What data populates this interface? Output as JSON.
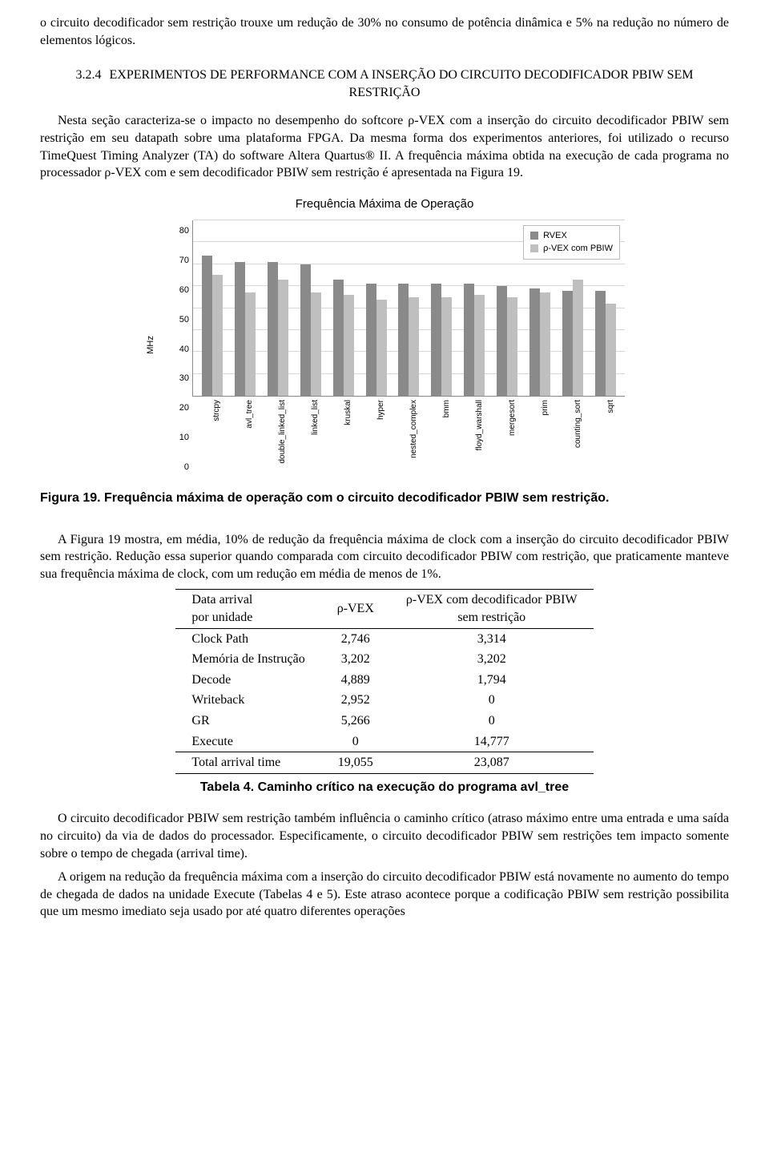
{
  "intro_para": "o circuito decodificador sem restrição trouxe um redução de 30% no consumo de potência dinâmica e 5% na redução no número de elementos lógicos.",
  "section": {
    "number": "3.2.4",
    "title": "EXPERIMENTOS DE PERFORMANCE COM A INSERÇÃO DO CIRCUITO DECODIFICADOR PBIW SEM RESTRIÇÃO"
  },
  "para_after_heading": "Nesta seção caracteriza-se o impacto no desempenho do softcore ρ-VEX com a inserção do circuito decodificador PBIW sem restrição em seu datapath sobre uma plataforma FPGA. Da mesma forma dos experimentos anteriores, foi utilizado o recurso TimeQuest Timing Analyzer (TA) do software Altera Quartus® II. A frequência máxima obtida na execução de cada programa no processador ρ-VEX com e sem decodificador PBIW sem restrição é apresentada na Figura 19.",
  "chart": {
    "type": "bar",
    "title": "Frequência Máxima de Operação",
    "y_label": "MHz",
    "y_max": 80,
    "y_ticks": [
      80,
      70,
      60,
      50,
      40,
      30,
      20,
      10,
      0
    ],
    "grid_color": "#d6d6d6",
    "series": [
      {
        "name": "RVEX",
        "color": "#8a8a8a"
      },
      {
        "name": "ρ-VEX com PBIW",
        "color": "#bfbfbf"
      }
    ],
    "categories": [
      "strcpy",
      "avl_tree",
      "double_linked_list",
      "linked_list",
      "kruskal",
      "hyper",
      "nested_complex",
      "bmm",
      "floyd_warshall",
      "mergesort",
      "prim",
      "counting_sort",
      "sqrt"
    ],
    "values_a": [
      64,
      61,
      61,
      60,
      53,
      51,
      51,
      51,
      51,
      50,
      49,
      48,
      48
    ],
    "values_b": [
      55,
      47,
      53,
      47,
      46,
      44,
      45,
      45,
      46,
      45,
      47,
      53,
      42
    ]
  },
  "figure19_caption": "Figura 19. Frequência máxima de operação com o circuito decodificador PBIW sem restrição.",
  "para_after_fig": "A Figura 19 mostra, em média, 10% de redução da frequência máxima de clock com a inserção do circuito decodificador PBIW sem restrição. Redução essa superior quando comparada com circuito decodificador PBIW com restrição, que praticamente manteve sua frequência máxima de clock, com um redução em média de menos de 1%.",
  "table4": {
    "header": [
      "Data arrival por unidade",
      "ρ-VEX",
      "ρ-VEX com decodificador PBIW sem restrição"
    ],
    "rows": [
      [
        "Clock Path",
        "2,746",
        "3,314"
      ],
      [
        "Memória de Instrução",
        "3,202",
        "3,202"
      ],
      [
        "Decode",
        "4,889",
        "1,794"
      ],
      [
        "Writeback",
        "2,952",
        "0"
      ],
      [
        "GR",
        "5,266",
        "0"
      ],
      [
        "Execute",
        "0",
        "14,777"
      ]
    ],
    "total": [
      "Total arrival time",
      "19,055",
      "23,087"
    ],
    "caption": "Tabela 4. Caminho crítico na execução do programa avl_tree"
  },
  "final_paras": [
    "O circuito decodificador PBIW sem restrição também influência o caminho crítico (atraso máximo entre uma entrada e uma saída no circuito) da via de dados do processador. Especificamente, o circuito decodificador PBIW sem restrições tem impacto somente sobre o tempo de chegada (arrival time).",
    "A origem na redução da frequência máxima com a inserção do circuito decodificador PBIW está novamente no aumento do tempo de chegada de dados na unidade Execute (Tabelas 4 e 5). Este atraso acontece porque a codificação PBIW sem restrição possibilita que um mesmo imediato seja usado por até quatro diferentes operações"
  ]
}
